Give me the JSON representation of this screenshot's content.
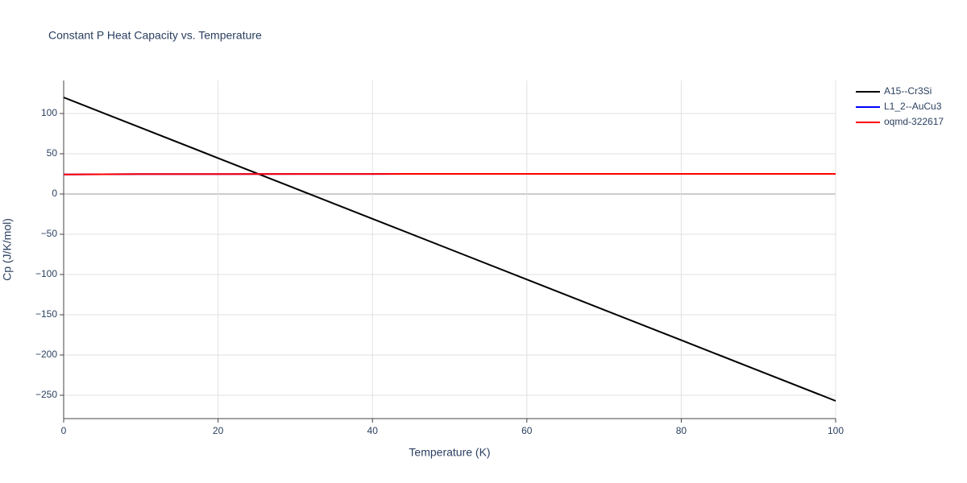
{
  "chart_data": {
    "type": "line",
    "title": "Constant P Heat Capacity vs. Temperature",
    "x_label": "Temperature (K)",
    "y_label": "Cp (J/K/mol)",
    "x": [
      0,
      10,
      20,
      30,
      40,
      50,
      60,
      70,
      80,
      90,
      100
    ],
    "series": [
      {
        "name": "A15--Cr3Si",
        "color": "#000000",
        "values": [
          120,
          82.3,
          44.6,
          6.9,
          -30.8,
          -68.5,
          -106.2,
          -143.9,
          -181.6,
          -219.3,
          -257
        ]
      },
      {
        "name": "L1_2--AuCu3",
        "color": "#0000ff",
        "values": [
          24.3,
          24.7,
          24.8,
          24.9,
          24.9,
          25,
          25,
          25,
          25,
          25,
          25
        ]
      },
      {
        "name": "oqmd-322617",
        "color": "#ff0000",
        "values": [
          24.3,
          24.7,
          24.8,
          24.9,
          24.9,
          25,
          25,
          25,
          25,
          25,
          25
        ]
      }
    ],
    "xlim": [
      0,
      100
    ],
    "xticks": [
      0,
      20,
      40,
      60,
      80,
      100
    ],
    "ylim": [
      -279,
      141
    ],
    "yticks": [
      100,
      50,
      0,
      {
        "value": -50,
        "label": "−50"
      },
      {
        "value": -100,
        "label": "−100"
      },
      {
        "value": -150,
        "label": "−150"
      },
      {
        "value": -200,
        "label": "−200"
      },
      {
        "value": -250,
        "label": "−250"
      }
    ],
    "grid": true,
    "legend": "right"
  }
}
